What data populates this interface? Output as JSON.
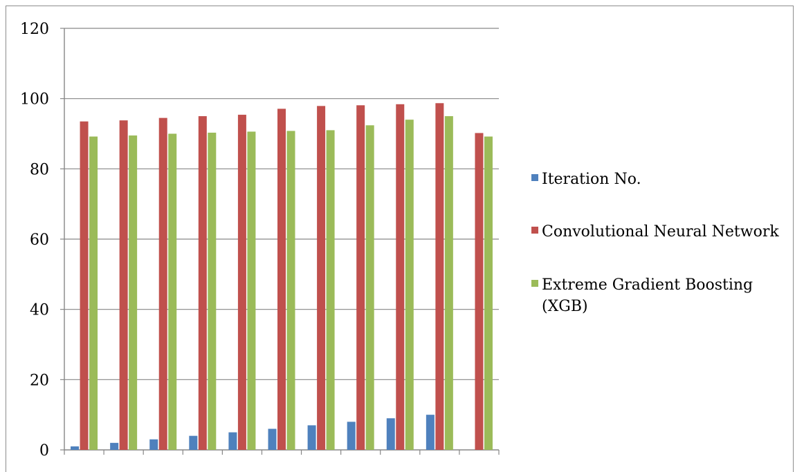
{
  "chart_data": {
    "type": "bar",
    "categories": [
      "",
      "",
      "",
      "",
      "",
      "",
      "",
      "",
      "",
      "",
      ""
    ],
    "series": [
      {
        "name": "Iteration No.",
        "color": "#4f81bd",
        "values": [
          1,
          2,
          3,
          4,
          5,
          6,
          7,
          8,
          9,
          10,
          0
        ]
      },
      {
        "name": "Convolutional Neural Network",
        "color": "#c0504d",
        "values": [
          93.5,
          93.8,
          94.5,
          95,
          95.4,
          97.1,
          97.9,
          98.1,
          98.4,
          98.7,
          90.2
        ]
      },
      {
        "name": "Extreme Gradient Boosting (XGB)",
        "color": "#9bbb59",
        "values": [
          89.2,
          89.5,
          90,
          90.3,
          90.6,
          90.8,
          91,
          92.4,
          94,
          95,
          89.2
        ]
      }
    ],
    "legend_lines": [
      [
        "Iteration No."
      ],
      [
        "Convolutional Neural Network"
      ],
      [
        "Extreme Gradient Boosting",
        "(XGB)"
      ]
    ],
    "yticks": [
      "0",
      "20",
      "40",
      "60",
      "80",
      "100",
      "120"
    ],
    "ylim": [
      0,
      120
    ],
    "grid": true,
    "legend_position": "right",
    "title": "",
    "xlabel": "",
    "ylabel": ""
  }
}
